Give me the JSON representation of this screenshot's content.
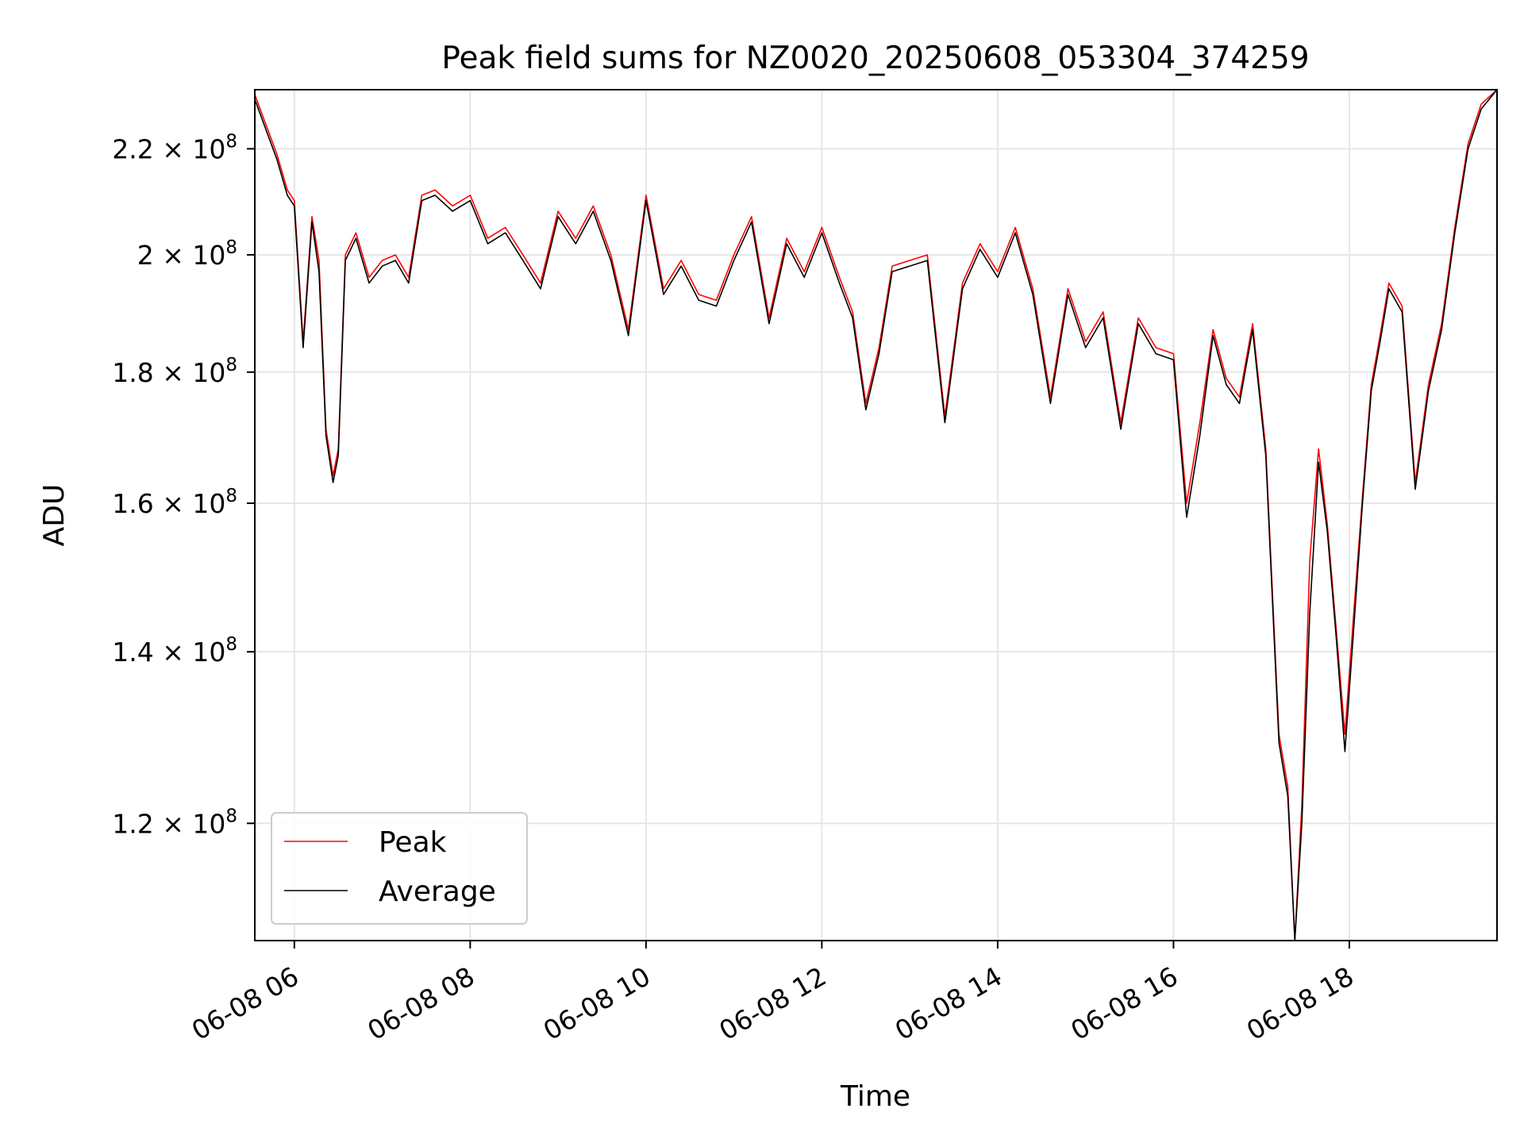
{
  "chart_data": {
    "type": "line",
    "title": "Peak field sums for NZ0020_20250608_053304_374259",
    "xlabel": "Time",
    "ylabel": "ADU",
    "y_scale": "log",
    "grid": true,
    "legend_position": "lower-left",
    "x_tick_labels": [
      "06-08 06",
      "06-08 08",
      "06-08 10",
      "06-08 12",
      "06-08 14",
      "06-08 16",
      "06-08 18"
    ],
    "y_ticks": [
      {
        "value": 120000000,
        "mantissa": "1.2",
        "exp": "8"
      },
      {
        "value": 140000000,
        "mantissa": "1.4",
        "exp": "8"
      },
      {
        "value": 160000000,
        "mantissa": "1.6",
        "exp": "8"
      },
      {
        "value": 180000000,
        "mantissa": "1.8",
        "exp": "8"
      },
      {
        "value": 200000000,
        "mantissa": "2",
        "exp": "8"
      },
      {
        "value": 220000000,
        "mantissa": "2.2",
        "exp": "8"
      }
    ],
    "times_note": "x values are hours of day on 2025-06-08",
    "xlim": [
      5.55,
      19.68
    ],
    "ylim": [
      108000000,
      232000000
    ],
    "series": [
      {
        "name": "Peak",
        "color": "#ff0000",
        "x": [
          5.55,
          5.8,
          5.92,
          6.0,
          6.1,
          6.2,
          6.28,
          6.36,
          6.44,
          6.5,
          6.58,
          6.7,
          6.85,
          7.0,
          7.15,
          7.3,
          7.45,
          7.6,
          7.8,
          8.0,
          8.2,
          8.4,
          8.6,
          8.8,
          9.0,
          9.2,
          9.4,
          9.6,
          9.8,
          10.0,
          10.2,
          10.4,
          10.6,
          10.8,
          11.0,
          11.2,
          11.4,
          11.6,
          11.8,
          12.0,
          12.2,
          12.35,
          12.5,
          12.65,
          12.8,
          13.0,
          13.2,
          13.4,
          13.6,
          13.8,
          14.0,
          14.2,
          14.4,
          14.6,
          14.8,
          15.0,
          15.2,
          15.4,
          15.6,
          15.8,
          16.0,
          16.15,
          16.3,
          16.45,
          16.6,
          16.75,
          16.9,
          17.05,
          17.2,
          17.3,
          17.38,
          17.46,
          17.55,
          17.65,
          17.75,
          17.85,
          17.95,
          18.05,
          18.15,
          18.25,
          18.35,
          18.45,
          18.6,
          18.75,
          18.9,
          19.05,
          19.2,
          19.35,
          19.5,
          19.68
        ],
        "values": [
          231000000,
          219000000,
          212000000,
          210000000,
          185000000,
          207000000,
          199000000,
          171000000,
          164000000,
          168000000,
          200000000,
          204000000,
          196000000,
          199000000,
          200000000,
          196000000,
          211000000,
          212000000,
          209000000,
          211000000,
          203000000,
          205000000,
          200000000,
          195000000,
          208000000,
          203000000,
          209000000,
          200000000,
          187000000,
          211000000,
          194000000,
          199000000,
          193000000,
          192000000,
          200000000,
          207000000,
          189000000,
          203000000,
          197000000,
          205000000,
          196000000,
          190000000,
          175000000,
          184000000,
          198000000,
          199000000,
          200000000,
          173000000,
          195000000,
          202000000,
          197000000,
          205000000,
          194000000,
          176000000,
          194000000,
          185000000,
          190000000,
          172000000,
          189000000,
          184000000,
          183000000,
          160000000,
          172000000,
          187000000,
          179000000,
          176000000,
          188000000,
          168000000,
          130000000,
          124000000,
          108000000,
          122000000,
          152000000,
          168000000,
          157000000,
          143000000,
          130000000,
          145000000,
          161000000,
          178000000,
          186000000,
          195000000,
          191000000,
          163000000,
          178000000,
          188000000,
          205000000,
          221000000,
          229000000,
          232000000
        ]
      },
      {
        "name": "Average",
        "color": "#000000",
        "x": [
          5.55,
          5.8,
          5.92,
          6.0,
          6.1,
          6.2,
          6.28,
          6.36,
          6.44,
          6.5,
          6.58,
          6.7,
          6.85,
          7.0,
          7.15,
          7.3,
          7.45,
          7.6,
          7.8,
          8.0,
          8.2,
          8.4,
          8.6,
          8.8,
          9.0,
          9.2,
          9.4,
          9.6,
          9.8,
          10.0,
          10.2,
          10.4,
          10.6,
          10.8,
          11.0,
          11.2,
          11.4,
          11.6,
          11.8,
          12.0,
          12.2,
          12.35,
          12.5,
          12.65,
          12.8,
          13.0,
          13.2,
          13.4,
          13.6,
          13.8,
          14.0,
          14.2,
          14.4,
          14.6,
          14.8,
          15.0,
          15.2,
          15.4,
          15.6,
          15.8,
          16.0,
          16.15,
          16.3,
          16.45,
          16.6,
          16.75,
          16.9,
          17.05,
          17.2,
          17.3,
          17.38,
          17.46,
          17.55,
          17.65,
          17.75,
          17.85,
          17.95,
          18.05,
          18.15,
          18.25,
          18.35,
          18.45,
          18.6,
          18.75,
          18.9,
          19.05,
          19.2,
          19.35,
          19.5,
          19.68
        ],
        "values": [
          230000000,
          218000000,
          211000000,
          209000000,
          184000000,
          206000000,
          197000000,
          170000000,
          163000000,
          167000000,
          199000000,
          203000000,
          195000000,
          198000000,
          199000000,
          195000000,
          210000000,
          211000000,
          208000000,
          210000000,
          202000000,
          204000000,
          199000000,
          194000000,
          207000000,
          202000000,
          208000000,
          199000000,
          186000000,
          210000000,
          193000000,
          198000000,
          192000000,
          191000000,
          199000000,
          206000000,
          188000000,
          202000000,
          196000000,
          204000000,
          195000000,
          189000000,
          174000000,
          183000000,
          197000000,
          198000000,
          199000000,
          172000000,
          194000000,
          201000000,
          196000000,
          204000000,
          193000000,
          175000000,
          193000000,
          184000000,
          189000000,
          171000000,
          188000000,
          183000000,
          182000000,
          158000000,
          170000000,
          186000000,
          178000000,
          175000000,
          187000000,
          167000000,
          129000000,
          123000000,
          108000000,
          120000000,
          145000000,
          166000000,
          156000000,
          142000000,
          128000000,
          143000000,
          160000000,
          177000000,
          185000000,
          194000000,
          190000000,
          162000000,
          177000000,
          187000000,
          204000000,
          220000000,
          228000000,
          232000000
        ]
      }
    ]
  }
}
